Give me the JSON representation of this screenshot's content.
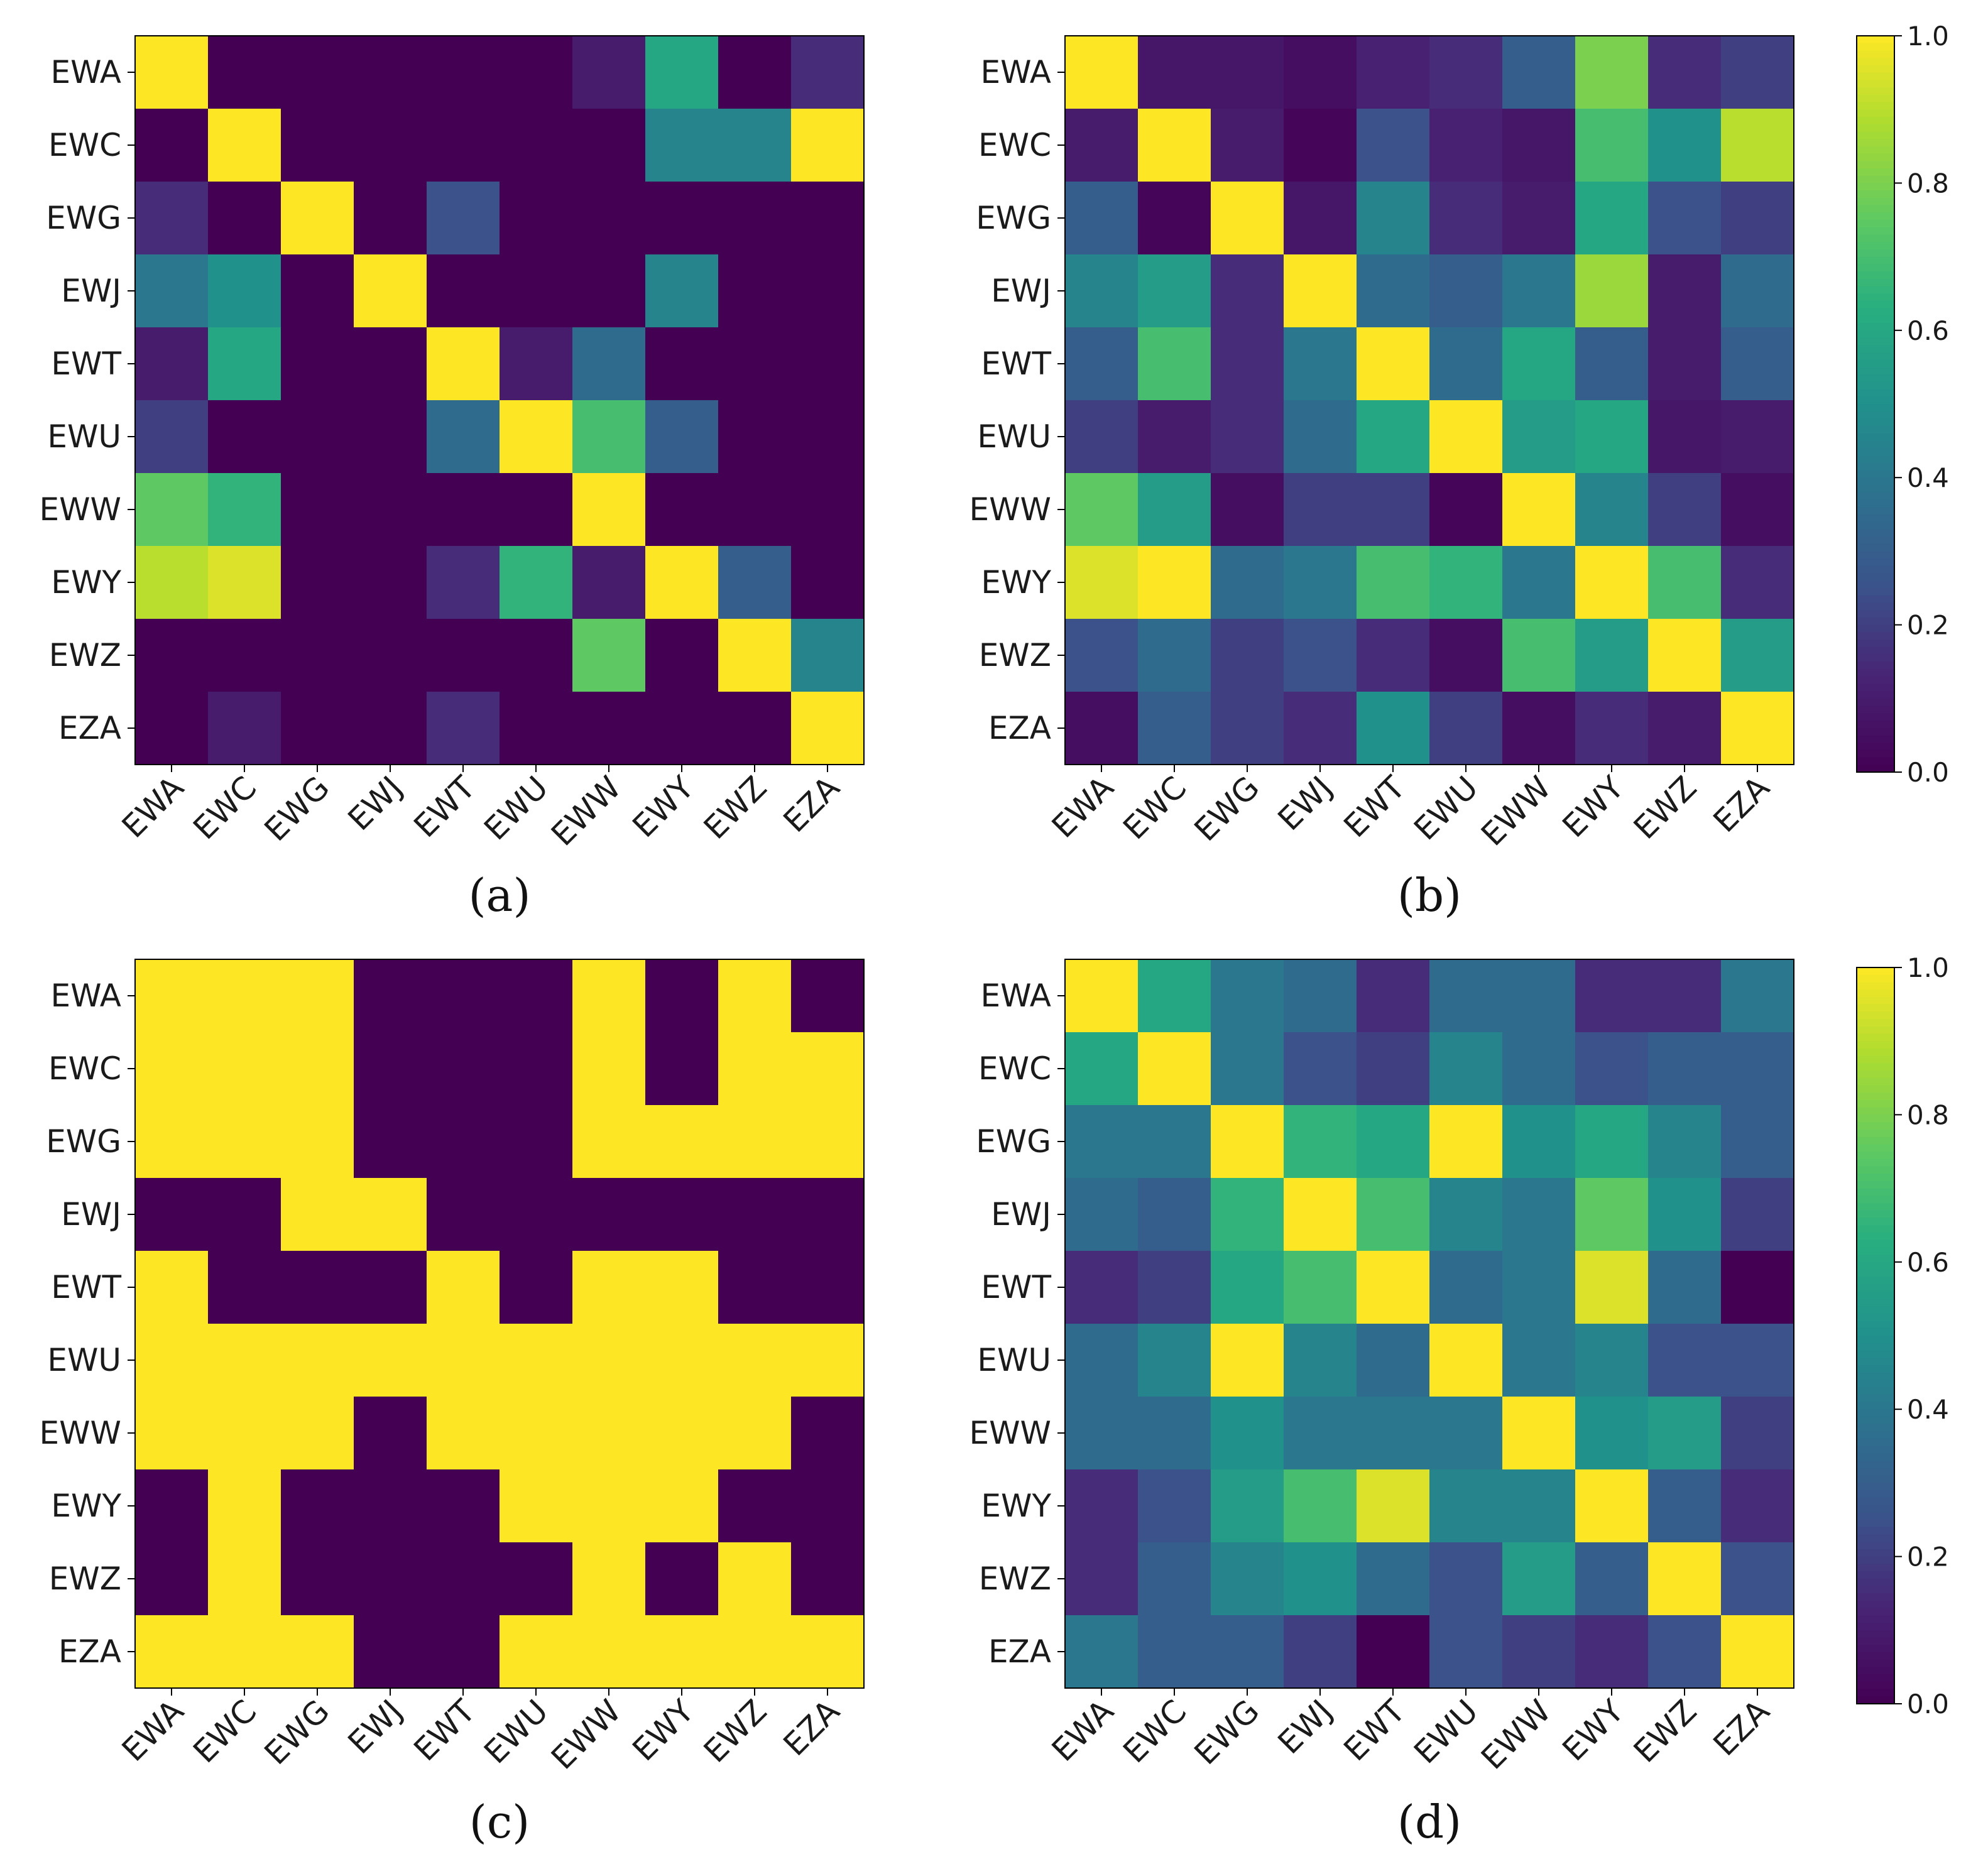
{
  "chart_data": [
    {
      "type": "heatmap",
      "caption": "(a)",
      "labels": [
        "EWA",
        "EWC",
        "EWG",
        "EWJ",
        "EWT",
        "EWU",
        "EWW",
        "EWY",
        "EWZ",
        "EZA"
      ],
      "zlim": [
        0,
        1
      ],
      "colorbar": false,
      "matrix": [
        [
          1.0,
          0.0,
          0.0,
          0.0,
          0.0,
          0.0,
          0.1,
          0.6,
          0.0,
          0.15
        ],
        [
          0.0,
          1.0,
          0.0,
          0.0,
          0.0,
          0.0,
          0.0,
          0.45,
          0.45,
          1.0
        ],
        [
          0.15,
          0.0,
          1.0,
          0.0,
          0.25,
          0.0,
          0.0,
          0.0,
          0.0,
          0.0
        ],
        [
          0.4,
          0.5,
          0.0,
          1.0,
          0.0,
          0.0,
          0.0,
          0.45,
          0.0,
          0.0
        ],
        [
          0.1,
          0.6,
          0.0,
          0.0,
          1.0,
          0.1,
          0.35,
          0.0,
          0.0,
          0.0
        ],
        [
          0.2,
          0.0,
          0.0,
          0.0,
          0.35,
          1.0,
          0.7,
          0.3,
          0.0,
          0.0
        ],
        [
          0.75,
          0.65,
          0.0,
          0.0,
          0.0,
          0.0,
          1.0,
          0.0,
          0.0,
          0.0
        ],
        [
          0.9,
          0.95,
          0.0,
          0.0,
          0.15,
          0.65,
          0.1,
          1.0,
          0.3,
          0.0
        ],
        [
          0.0,
          0.0,
          0.0,
          0.0,
          0.0,
          0.0,
          0.75,
          0.0,
          1.0,
          0.45
        ],
        [
          0.0,
          0.1,
          0.0,
          0.0,
          0.15,
          0.0,
          0.0,
          0.0,
          0.0,
          1.0
        ]
      ]
    },
    {
      "type": "heatmap",
      "caption": "(b)",
      "labels": [
        "EWA",
        "EWC",
        "EWG",
        "EWJ",
        "EWT",
        "EWU",
        "EWW",
        "EWY",
        "EWZ",
        "EZA"
      ],
      "zlim": [
        0,
        1
      ],
      "colorbar": true,
      "colorbar_ticks": [
        "0.0",
        "0.2",
        "0.4",
        "0.6",
        "0.8",
        "1.0"
      ],
      "matrix": [
        [
          1.0,
          0.08,
          0.08,
          0.05,
          0.12,
          0.15,
          0.3,
          0.8,
          0.15,
          0.2
        ],
        [
          0.1,
          1.0,
          0.1,
          0.02,
          0.25,
          0.12,
          0.08,
          0.7,
          0.5,
          0.9
        ],
        [
          0.3,
          0.02,
          1.0,
          0.08,
          0.45,
          0.15,
          0.1,
          0.6,
          0.25,
          0.2
        ],
        [
          0.45,
          0.55,
          0.15,
          1.0,
          0.35,
          0.3,
          0.4,
          0.85,
          0.1,
          0.35
        ],
        [
          0.3,
          0.7,
          0.15,
          0.4,
          1.0,
          0.35,
          0.6,
          0.3,
          0.1,
          0.3
        ],
        [
          0.2,
          0.1,
          0.15,
          0.35,
          0.6,
          1.0,
          0.55,
          0.6,
          0.08,
          0.1
        ],
        [
          0.75,
          0.55,
          0.05,
          0.2,
          0.2,
          0.02,
          1.0,
          0.45,
          0.2,
          0.05
        ],
        [
          0.95,
          1.0,
          0.35,
          0.4,
          0.7,
          0.65,
          0.4,
          1.0,
          0.7,
          0.15
        ],
        [
          0.25,
          0.35,
          0.2,
          0.25,
          0.15,
          0.05,
          0.7,
          0.55,
          1.0,
          0.55
        ],
        [
          0.05,
          0.3,
          0.2,
          0.15,
          0.5,
          0.2,
          0.05,
          0.15,
          0.1,
          1.0
        ]
      ]
    },
    {
      "type": "heatmap",
      "caption": "(c)",
      "labels": [
        "EWA",
        "EWC",
        "EWG",
        "EWJ",
        "EWT",
        "EWU",
        "EWW",
        "EWY",
        "EWZ",
        "EZA"
      ],
      "zlim": [
        0,
        1
      ],
      "colorbar": false,
      "matrix": [
        [
          1,
          1,
          1,
          0,
          0,
          0,
          1,
          0,
          1,
          0
        ],
        [
          1,
          1,
          1,
          0,
          0,
          0,
          1,
          0,
          1,
          1
        ],
        [
          1,
          1,
          1,
          0,
          0,
          0,
          1,
          1,
          1,
          1
        ],
        [
          0,
          0,
          1,
          1,
          0,
          0,
          0,
          0,
          0,
          0
        ],
        [
          1,
          0,
          0,
          0,
          1,
          0,
          1,
          1,
          0,
          0
        ],
        [
          1,
          1,
          1,
          1,
          1,
          1,
          1,
          1,
          1,
          1
        ],
        [
          1,
          1,
          1,
          0,
          1,
          1,
          1,
          1,
          1,
          0
        ],
        [
          0,
          1,
          0,
          0,
          0,
          1,
          1,
          1,
          0,
          0
        ],
        [
          0,
          1,
          0,
          0,
          0,
          0,
          1,
          0,
          1,
          0
        ],
        [
          1,
          1,
          1,
          0,
          0,
          1,
          1,
          1,
          1,
          1
        ]
      ]
    },
    {
      "type": "heatmap",
      "caption": "(d)",
      "labels": [
        "EWA",
        "EWC",
        "EWG",
        "EWJ",
        "EWT",
        "EWU",
        "EWW",
        "EWY",
        "EWZ",
        "EZA"
      ],
      "zlim": [
        0,
        1
      ],
      "colorbar": true,
      "colorbar_ticks": [
        "0.0",
        "0.2",
        "0.4",
        "0.6",
        "0.8",
        "1.0"
      ],
      "matrix": [
        [
          1.0,
          0.6,
          0.4,
          0.35,
          0.15,
          0.35,
          0.35,
          0.15,
          0.15,
          0.4
        ],
        [
          0.6,
          1.0,
          0.4,
          0.25,
          0.2,
          0.45,
          0.35,
          0.25,
          0.3,
          0.3
        ],
        [
          0.4,
          0.4,
          1.0,
          0.65,
          0.6,
          1.0,
          0.5,
          0.6,
          0.45,
          0.3
        ],
        [
          0.35,
          0.3,
          0.65,
          1.0,
          0.7,
          0.45,
          0.4,
          0.75,
          0.5,
          0.2
        ],
        [
          0.15,
          0.2,
          0.6,
          0.7,
          1.0,
          0.35,
          0.4,
          0.95,
          0.35,
          0.0
        ],
        [
          0.35,
          0.45,
          1.0,
          0.45,
          0.35,
          1.0,
          0.4,
          0.45,
          0.25,
          0.25
        ],
        [
          0.35,
          0.35,
          0.5,
          0.4,
          0.4,
          0.4,
          1.0,
          0.5,
          0.55,
          0.2
        ],
        [
          0.15,
          0.25,
          0.55,
          0.7,
          0.95,
          0.45,
          0.45,
          1.0,
          0.3,
          0.15
        ],
        [
          0.15,
          0.3,
          0.45,
          0.5,
          0.35,
          0.25,
          0.55,
          0.3,
          1.0,
          0.25
        ],
        [
          0.4,
          0.3,
          0.3,
          0.2,
          0.0,
          0.25,
          0.2,
          0.15,
          0.25,
          1.0
        ]
      ]
    }
  ]
}
